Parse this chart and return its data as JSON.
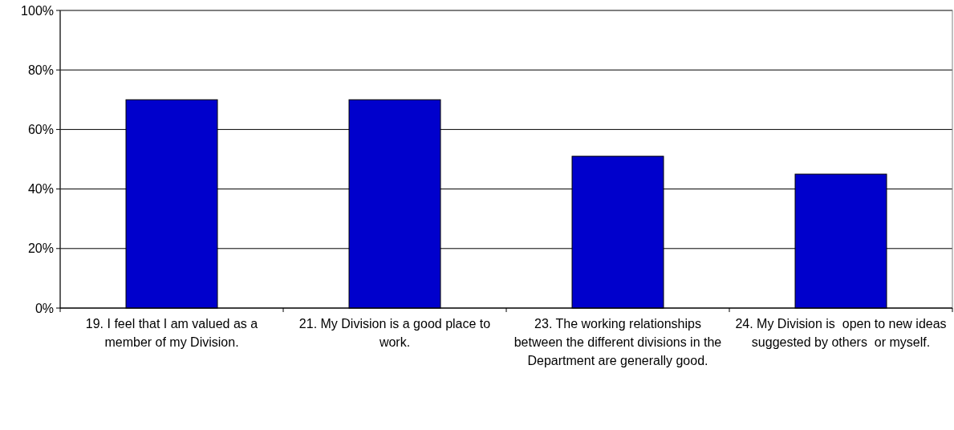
{
  "chart_data": {
    "type": "bar",
    "categories": [
      "19. I feel that I am valued as a member of my Division.",
      "21. My Division is a good place to work.",
      "23. The working relationships between the different divisions in the Department are generally good.",
      "24. My Division is  open to new ideas suggested by others  or myself."
    ],
    "values": [
      70,
      70,
      51,
      45
    ],
    "color": "#0000cc",
    "ylim": [
      0,
      100
    ],
    "yticks": [
      {
        "value": 0,
        "label": "0%"
      },
      {
        "value": 20,
        "label": "20%"
      },
      {
        "value": 40,
        "label": "40%"
      },
      {
        "value": 60,
        "label": "60%"
      },
      {
        "value": 80,
        "label": "80%"
      },
      {
        "value": 100,
        "label": "100%"
      }
    ],
    "grid": "y"
  }
}
